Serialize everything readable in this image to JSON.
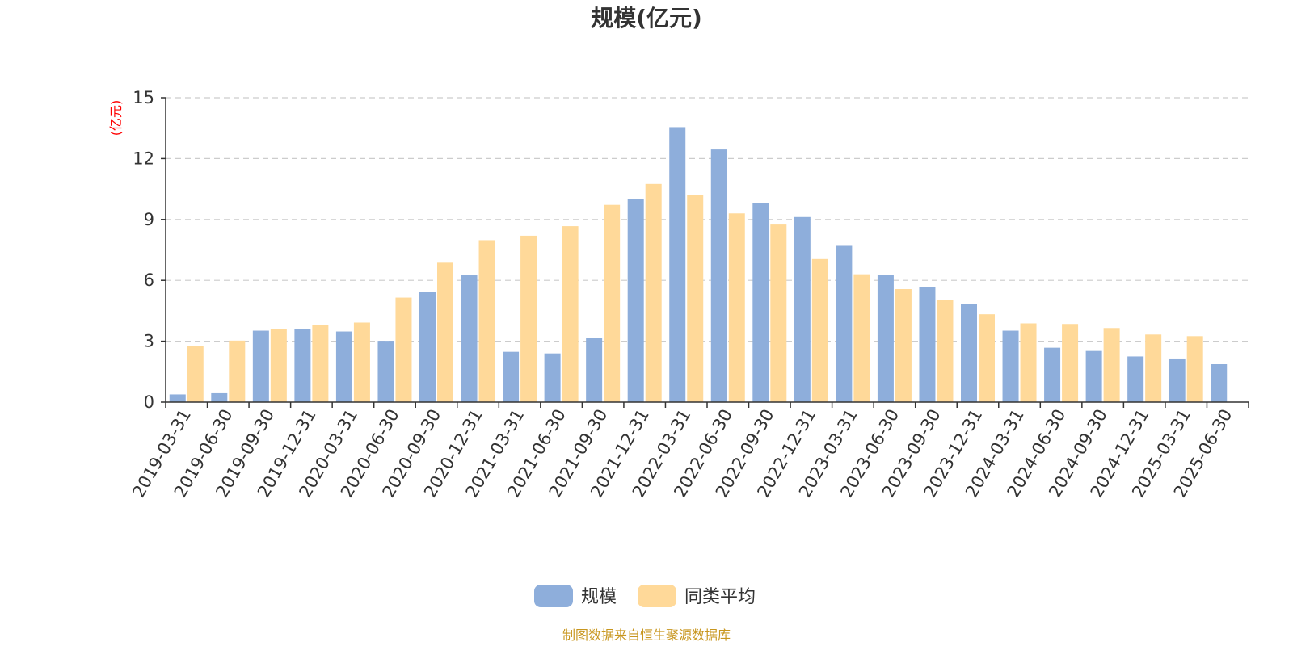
{
  "chart_data": {
    "type": "bar",
    "title": "规模(亿元)",
    "ylabel": "(亿元)",
    "ylim": [
      0,
      15
    ],
    "yticks": [
      0,
      3,
      6,
      9,
      12,
      15
    ],
    "grid": true,
    "legend_position": "bottom",
    "categories": [
      "2019-03-31",
      "2019-06-30",
      "2019-09-30",
      "2019-12-31",
      "2020-03-31",
      "2020-06-30",
      "2020-09-30",
      "2020-12-31",
      "2021-03-31",
      "2021-06-30",
      "2021-09-30",
      "2021-12-31",
      "2022-03-31",
      "2022-06-30",
      "2022-09-30",
      "2022-12-31",
      "2023-03-31",
      "2023-06-30",
      "2023-09-30",
      "2023-12-31",
      "2024-03-31",
      "2024-06-30",
      "2024-09-30",
      "2024-12-31",
      "2025-03-31",
      "2025-06-30"
    ],
    "series": [
      {
        "name": "规模",
        "color": "#8eaedb",
        "values": [
          0.38,
          0.44,
          3.52,
          3.62,
          3.48,
          3.02,
          5.42,
          6.25,
          2.48,
          2.4,
          3.15,
          10.0,
          13.55,
          12.45,
          9.82,
          9.12,
          7.7,
          6.25,
          5.68,
          4.85,
          3.52,
          2.68,
          2.52,
          2.25,
          2.15,
          1.87
        ]
      },
      {
        "name": "同类平均",
        "color": "#ffd999",
        "values": [
          2.75,
          3.03,
          3.62,
          3.82,
          3.92,
          5.15,
          6.87,
          7.98,
          8.2,
          8.67,
          9.72,
          10.75,
          10.22,
          9.3,
          8.75,
          7.05,
          6.3,
          5.57,
          5.03,
          4.33,
          3.88,
          3.85,
          3.65,
          3.33,
          3.25,
          null
        ]
      }
    ]
  },
  "source_note": "制图数据来自恒生聚源数据库"
}
